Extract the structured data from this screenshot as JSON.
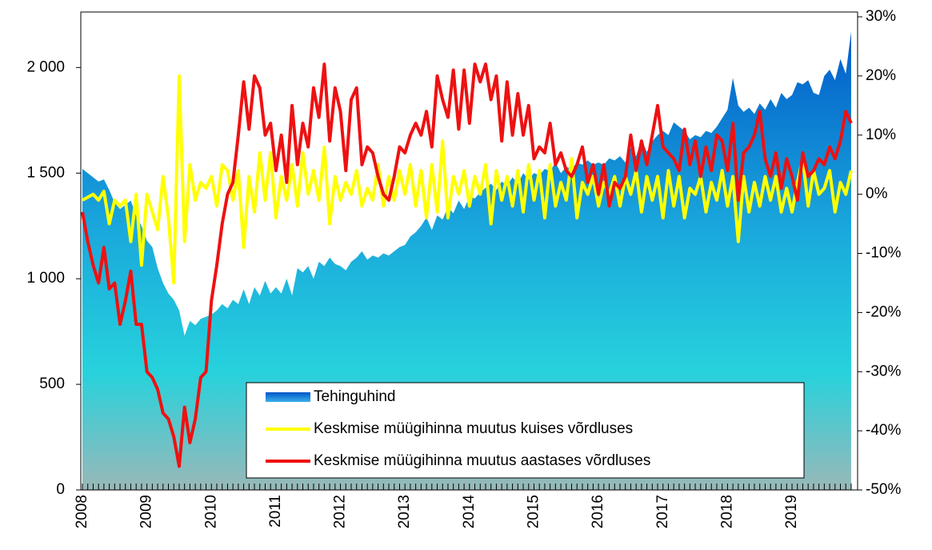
{
  "chart_data": {
    "type": "area_line_combo",
    "categories": [
      "2008",
      null,
      null,
      null,
      null,
      null,
      null,
      null,
      null,
      null,
      null,
      null,
      "2009",
      null,
      null,
      null,
      null,
      null,
      null,
      null,
      null,
      null,
      null,
      null,
      "2010",
      null,
      null,
      null,
      null,
      null,
      null,
      null,
      null,
      null,
      null,
      null,
      "2011",
      null,
      null,
      null,
      null,
      null,
      null,
      null,
      null,
      null,
      null,
      null,
      "2012",
      null,
      null,
      null,
      null,
      null,
      null,
      null,
      null,
      null,
      null,
      null,
      "2013",
      null,
      null,
      null,
      null,
      null,
      null,
      null,
      null,
      null,
      null,
      null,
      "2014",
      null,
      null,
      null,
      null,
      null,
      null,
      null,
      null,
      null,
      null,
      null,
      "2015",
      null,
      null,
      null,
      null,
      null,
      null,
      null,
      null,
      null,
      null,
      null,
      "2016",
      null,
      null,
      null,
      null,
      null,
      null,
      null,
      null,
      null,
      null,
      null,
      "2017",
      null,
      null,
      null,
      null,
      null,
      null,
      null,
      null,
      null,
      null,
      null,
      "2018",
      null,
      null,
      null,
      null,
      null,
      null,
      null,
      null,
      null,
      null,
      null,
      "2019",
      null,
      null,
      null,
      null,
      null,
      null,
      null,
      null,
      null,
      null,
      null
    ],
    "series": [
      {
        "name": "Tehinguhind",
        "kind": "area",
        "color": "#0a6fd0",
        "axis": "y",
        "values": [
          1520,
          1500,
          1480,
          1460,
          1470,
          1420,
          1360,
          1330,
          1350,
          1370,
          1300,
          1250,
          1180,
          1150,
          1050,
          980,
          930,
          900,
          850,
          730,
          800,
          780,
          810,
          820,
          830,
          850,
          880,
          860,
          900,
          880,
          950,
          880,
          960,
          920,
          990,
          930,
          960,
          930,
          1000,
          920,
          1050,
          1030,
          1060,
          1000,
          1080,
          1060,
          1100,
          1070,
          1060,
          1040,
          1080,
          1100,
          1130,
          1090,
          1110,
          1100,
          1120,
          1110,
          1130,
          1150,
          1160,
          1200,
          1220,
          1250,
          1290,
          1230,
          1300,
          1280,
          1340,
          1310,
          1370,
          1330,
          1390,
          1380,
          1410,
          1430,
          1450,
          1420,
          1460,
          1440,
          1480,
          1450,
          1500,
          1470,
          1500,
          1490,
          1520,
          1510,
          1550,
          1500,
          1530,
          1520,
          1550,
          1540,
          1560,
          1540,
          1550,
          1540,
          1570,
          1560,
          1580,
          1550,
          1620,
          1580,
          1660,
          1600,
          1650,
          1680,
          1700,
          1680,
          1740,
          1720,
          1700,
          1660,
          1680,
          1670,
          1700,
          1690,
          1720,
          1760,
          1800,
          1950,
          1820,
          1790,
          1810,
          1780,
          1830,
          1800,
          1850,
          1810,
          1880,
          1850,
          1870,
          1930,
          1920,
          1940,
          1880,
          1870,
          1960,
          1990,
          1940,
          2040,
          1970,
          2170
        ]
      },
      {
        "name": "Keskmise müügihinna muutus kuises võrdluses",
        "kind": "line",
        "color": "#ffff00",
        "axis": "y2",
        "values": [
          -1,
          -0.5,
          0,
          -1,
          0.5,
          -5,
          -1,
          -2,
          -1,
          -8,
          0,
          -12,
          0,
          -3,
          -6,
          3,
          -4,
          -15,
          20,
          -8,
          5,
          -1,
          2,
          1,
          3,
          -2,
          5,
          4,
          -1,
          4,
          -9,
          3,
          -3,
          7,
          -1,
          7,
          -4,
          3,
          -1,
          5,
          -2,
          7,
          0,
          4,
          -1,
          8,
          -5,
          3,
          -1,
          2,
          0,
          4,
          -2,
          1,
          -1,
          5,
          -2,
          3,
          -1,
          4,
          0,
          5,
          -2,
          4,
          -4,
          5,
          -3,
          9,
          -4,
          3,
          0,
          4,
          -2,
          3,
          0,
          5,
          -5,
          4,
          -1,
          3,
          -2,
          4,
          -3,
          5,
          -1,
          4,
          -4,
          5,
          -2,
          2,
          -1,
          6,
          -4,
          2,
          0,
          3,
          -2,
          2,
          0,
          3,
          -2,
          3,
          0,
          4,
          -3,
          3,
          -1,
          3,
          -4,
          4,
          -2,
          3,
          -4,
          1,
          0,
          3,
          -3,
          2,
          -1,
          4,
          -2,
          3,
          -8,
          3,
          -3,
          2,
          -2,
          3,
          -1,
          3,
          -3,
          1,
          -3,
          2,
          6,
          -2,
          4,
          0,
          1,
          4,
          -3,
          2,
          0,
          4
        ]
      },
      {
        "name": "Keskmise müügihinna muutus aastases võrdluses",
        "kind": "line",
        "color": "#ee1111",
        "axis": "y2",
        "values": [
          -3,
          -8,
          -12,
          -15,
          -9,
          -16,
          -15,
          -22,
          -18,
          -13,
          -22,
          -22,
          -30,
          -31,
          -33,
          -37,
          -38,
          -41,
          -46,
          -36,
          -42,
          -38,
          -31,
          -30,
          -18,
          -12,
          -5,
          0,
          2,
          10,
          19,
          11,
          20,
          18,
          10,
          12,
          4,
          10,
          2,
          15,
          5,
          12,
          8,
          18,
          13,
          22,
          9,
          18,
          14,
          4,
          16,
          18,
          5,
          8,
          7,
          3,
          0,
          -1,
          3,
          8,
          7,
          10,
          12,
          10,
          14,
          8,
          20,
          16,
          13,
          21,
          11,
          21,
          12,
          22,
          19,
          22,
          16,
          20,
          9,
          19,
          10,
          17,
          10,
          15,
          6,
          8,
          7,
          12,
          5,
          7,
          4,
          3,
          5,
          8,
          2,
          5,
          0,
          5,
          -2,
          2,
          1,
          3,
          10,
          4,
          9,
          5,
          10,
          15,
          8,
          7,
          6,
          4,
          11,
          5,
          9,
          3,
          8,
          4,
          10,
          9,
          4,
          12,
          -1,
          7,
          8,
          10,
          14,
          6,
          3,
          7,
          1,
          6,
          3,
          -1,
          7,
          3,
          4,
          6,
          5,
          8,
          6,
          9,
          14,
          12
        ]
      }
    ],
    "ylim": [
      0,
      2240
    ],
    "yticks": [
      0,
      500,
      {
        "value": 1000,
        "label": "1 000"
      },
      {
        "value": 1500,
        "label": "1 500"
      },
      {
        "value": 2000,
        "label": "2 000"
      }
    ],
    "y2lim": [
      -50,
      30
    ],
    "y2ticks": [
      {
        "value": -50,
        "label": "-50%"
      },
      {
        "value": -40,
        "label": "-40%"
      },
      {
        "value": -30,
        "label": "-30%"
      },
      {
        "value": -20,
        "label": "-20%"
      },
      {
        "value": -10,
        "label": "-10%"
      },
      {
        "value": 0,
        "label": "0%"
      },
      {
        "value": 10,
        "label": "10%"
      },
      {
        "value": 20,
        "label": "20%"
      },
      {
        "value": 30,
        "label": "30%"
      }
    ],
    "legend": "bottom-center"
  }
}
